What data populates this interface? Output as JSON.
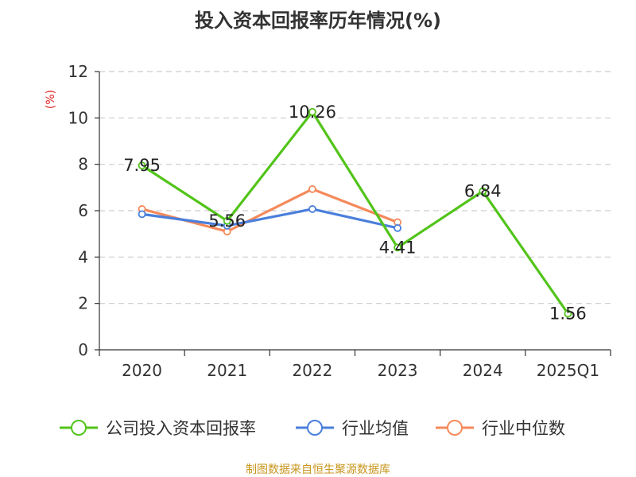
{
  "chart_data": {
    "type": "line",
    "title": "投入资本回报率历年情况(%)",
    "ylabel": "(%)",
    "ylabel_color": "#e02020",
    "categories": [
      "2020",
      "2021",
      "2022",
      "2023",
      "2024",
      "2025Q1"
    ],
    "ylim": [
      0,
      12
    ],
    "yticks": [
      0,
      2,
      4,
      6,
      8,
      10,
      12
    ],
    "grid": true,
    "legend_position": "bottom",
    "series": [
      {
        "name": "公司投入资本回报率",
        "color": "#52c41a",
        "values": [
          7.95,
          5.56,
          10.26,
          4.41,
          6.84,
          1.56
        ],
        "labels": [
          "7.95",
          "5.56",
          "10.26",
          "4.41",
          "6.84",
          "1.56"
        ]
      },
      {
        "name": "行业均值",
        "color": "#4a7fdb",
        "values": [
          5.85,
          5.35,
          6.07,
          5.25,
          null,
          null
        ]
      },
      {
        "name": "行业中位数",
        "color": "#f58a5b",
        "values": [
          6.07,
          5.1,
          6.93,
          5.5,
          null,
          null
        ]
      }
    ]
  },
  "source": {
    "text": "制图数据来自恒生聚源数据库",
    "color": "#c8961e"
  }
}
